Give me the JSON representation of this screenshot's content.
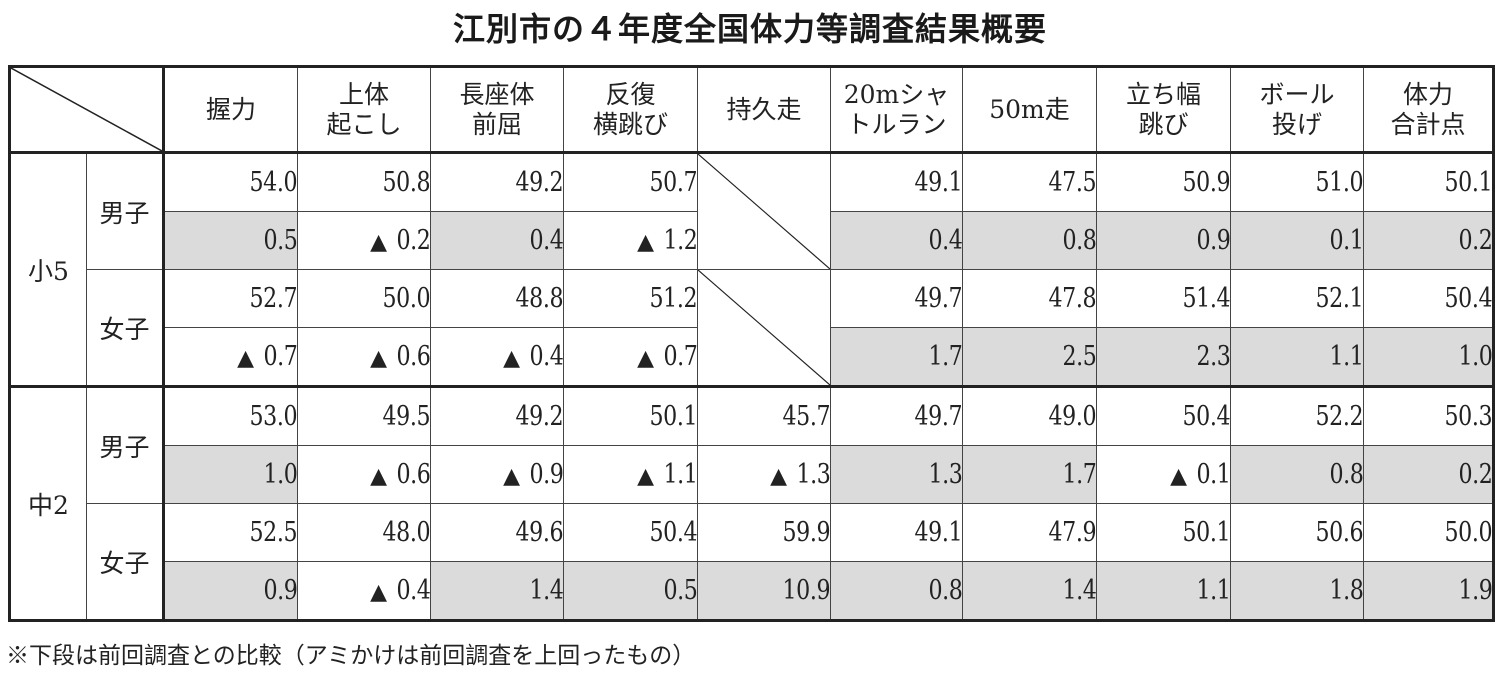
{
  "title": "江別市の４年度全国体力等調査結果概要",
  "columns": [
    {
      "line1": "握力",
      "line2": ""
    },
    {
      "line1": "上体",
      "line2": "起こし"
    },
    {
      "line1": "長座体",
      "line2": "前屈"
    },
    {
      "line1": "反復",
      "line2": "横跳び"
    },
    {
      "line1": "持久走",
      "line2": ""
    },
    {
      "line1": "20mシャ",
      "line2": "トルラン"
    },
    {
      "line1": "50m走",
      "line2": ""
    },
    {
      "line1": "立ち幅",
      "line2": "跳び"
    },
    {
      "line1": "ボール",
      "line2": "投げ"
    },
    {
      "line1": "体力",
      "line2": "合計点"
    }
  ],
  "decrease_marker": "▲",
  "shade_color": "#dcdbdc",
  "groups": [
    {
      "grade": "小5",
      "rows": [
        {
          "sex": "男子",
          "scores": [
            "54.0",
            "50.8",
            "49.2",
            "50.7",
            null,
            "49.1",
            "47.5",
            "50.9",
            "51.0",
            "50.1"
          ],
          "diffs": [
            {
              "v": "0.5",
              "down": false
            },
            {
              "v": "0.2",
              "down": true
            },
            {
              "v": "0.4",
              "down": false
            },
            {
              "v": "1.2",
              "down": true
            },
            null,
            {
              "v": "0.4",
              "down": false
            },
            {
              "v": "0.8",
              "down": false
            },
            {
              "v": "0.9",
              "down": false
            },
            {
              "v": "0.1",
              "down": false
            },
            {
              "v": "0.2",
              "down": false
            }
          ]
        },
        {
          "sex": "女子",
          "scores": [
            "52.7",
            "50.0",
            "48.8",
            "51.2",
            null,
            "49.7",
            "47.8",
            "51.4",
            "52.1",
            "50.4"
          ],
          "diffs": [
            {
              "v": "0.7",
              "down": true
            },
            {
              "v": "0.6",
              "down": true
            },
            {
              "v": "0.4",
              "down": true
            },
            {
              "v": "0.7",
              "down": true
            },
            null,
            {
              "v": "1.7",
              "down": false
            },
            {
              "v": "2.5",
              "down": false
            },
            {
              "v": "2.3",
              "down": false
            },
            {
              "v": "1.1",
              "down": false
            },
            {
              "v": "1.0",
              "down": false
            }
          ]
        }
      ]
    },
    {
      "grade": "中2",
      "rows": [
        {
          "sex": "男子",
          "scores": [
            "53.0",
            "49.5",
            "49.2",
            "50.1",
            "45.7",
            "49.7",
            "49.0",
            "50.4",
            "52.2",
            "50.3"
          ],
          "diffs": [
            {
              "v": "1.0",
              "down": false
            },
            {
              "v": "0.6",
              "down": true
            },
            {
              "v": "0.9",
              "down": true
            },
            {
              "v": "1.1",
              "down": true
            },
            {
              "v": "1.3",
              "down": true
            },
            {
              "v": "1.3",
              "down": false
            },
            {
              "v": "1.7",
              "down": false
            },
            {
              "v": "0.1",
              "down": true
            },
            {
              "v": "0.8",
              "down": false
            },
            {
              "v": "0.2",
              "down": false
            }
          ]
        },
        {
          "sex": "女子",
          "scores": [
            "52.5",
            "48.0",
            "49.6",
            "50.4",
            "59.9",
            "49.1",
            "47.9",
            "50.1",
            "50.6",
            "50.0"
          ],
          "diffs": [
            {
              "v": "0.9",
              "down": false
            },
            {
              "v": "0.4",
              "down": true
            },
            {
              "v": "1.4",
              "down": false
            },
            {
              "v": "0.5",
              "down": false
            },
            {
              "v": "10.9",
              "down": false
            },
            {
              "v": "0.8",
              "down": false
            },
            {
              "v": "1.4",
              "down": false
            },
            {
              "v": "1.1",
              "down": false
            },
            {
              "v": "1.8",
              "down": false
            },
            {
              "v": "1.9",
              "down": false
            }
          ]
        }
      ]
    }
  ],
  "footnote": "※下段は前回調査との比較（アミかけは前回調査を上回ったもの）"
}
